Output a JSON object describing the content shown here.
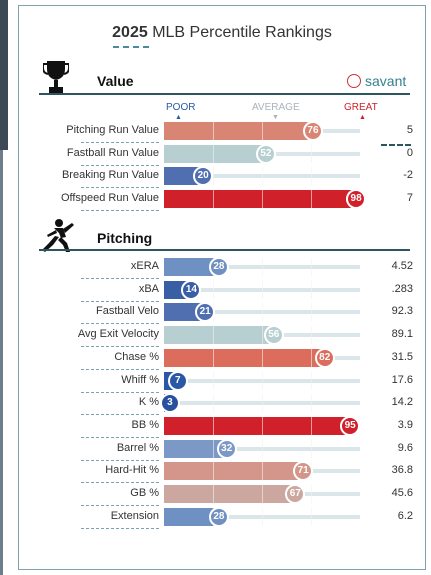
{
  "header": {
    "year": "2025",
    "title": "MLB Percentile Rankings"
  },
  "brand": {
    "name": "savant"
  },
  "legend": {
    "poor": "POOR",
    "average": "AVERAGE",
    "great": "GREAT",
    "poor_color": "#2a5aa0",
    "average_color": "#a9b3ba",
    "great_color": "#d0202a"
  },
  "sections": {
    "value": {
      "title": "Value",
      "icon": "trophy-icon",
      "rows": [
        {
          "label": "Pitching Run Value",
          "percentile": 76,
          "value": "5",
          "color": "#d98573"
        },
        {
          "label": "Fastball Run Value",
          "percentile": 52,
          "value": "0",
          "color": "#b7cfd1"
        },
        {
          "label": "Breaking Run Value",
          "percentile": 20,
          "value": "-2",
          "color": "#506fb1"
        },
        {
          "label": "Offspeed Run Value",
          "percentile": 98,
          "value": "7",
          "color": "#d0202a"
        }
      ]
    },
    "pitching": {
      "title": "Pitching",
      "icon": "pitcher-icon",
      "rows": [
        {
          "label": "xERA",
          "percentile": 28,
          "value": "4.52",
          "color": "#6f90c2"
        },
        {
          "label": "xBA",
          "percentile": 14,
          "value": ".283",
          "color": "#3a5ea6"
        },
        {
          "label": "Fastball Velo",
          "percentile": 21,
          "value": "92.3",
          "color": "#506fb1"
        },
        {
          "label": "Avg Exit Velocity",
          "percentile": 56,
          "value": "89.1",
          "color": "#b7cfd1"
        },
        {
          "label": "Chase %",
          "percentile": 82,
          "value": "31.5",
          "color": "#dc6c5c"
        },
        {
          "label": "Whiff %",
          "percentile": 7,
          "value": "17.6",
          "color": "#2a58a6"
        },
        {
          "label": "K %",
          "percentile": 3,
          "value": "14.2",
          "color": "#2750a1"
        },
        {
          "label": "BB %",
          "percentile": 95,
          "value": "3.9",
          "color": "#d0202a"
        },
        {
          "label": "Barrel %",
          "percentile": 32,
          "value": "9.6",
          "color": "#7b98c6"
        },
        {
          "label": "Hard-Hit %",
          "percentile": 71,
          "value": "36.8",
          "color": "#d4968a"
        },
        {
          "label": "GB %",
          "percentile": 67,
          "value": "45.6",
          "color": "#cba79f"
        },
        {
          "label": "Extension",
          "percentile": 28,
          "value": "6.2",
          "color": "#6f90c2"
        }
      ]
    }
  }
}
